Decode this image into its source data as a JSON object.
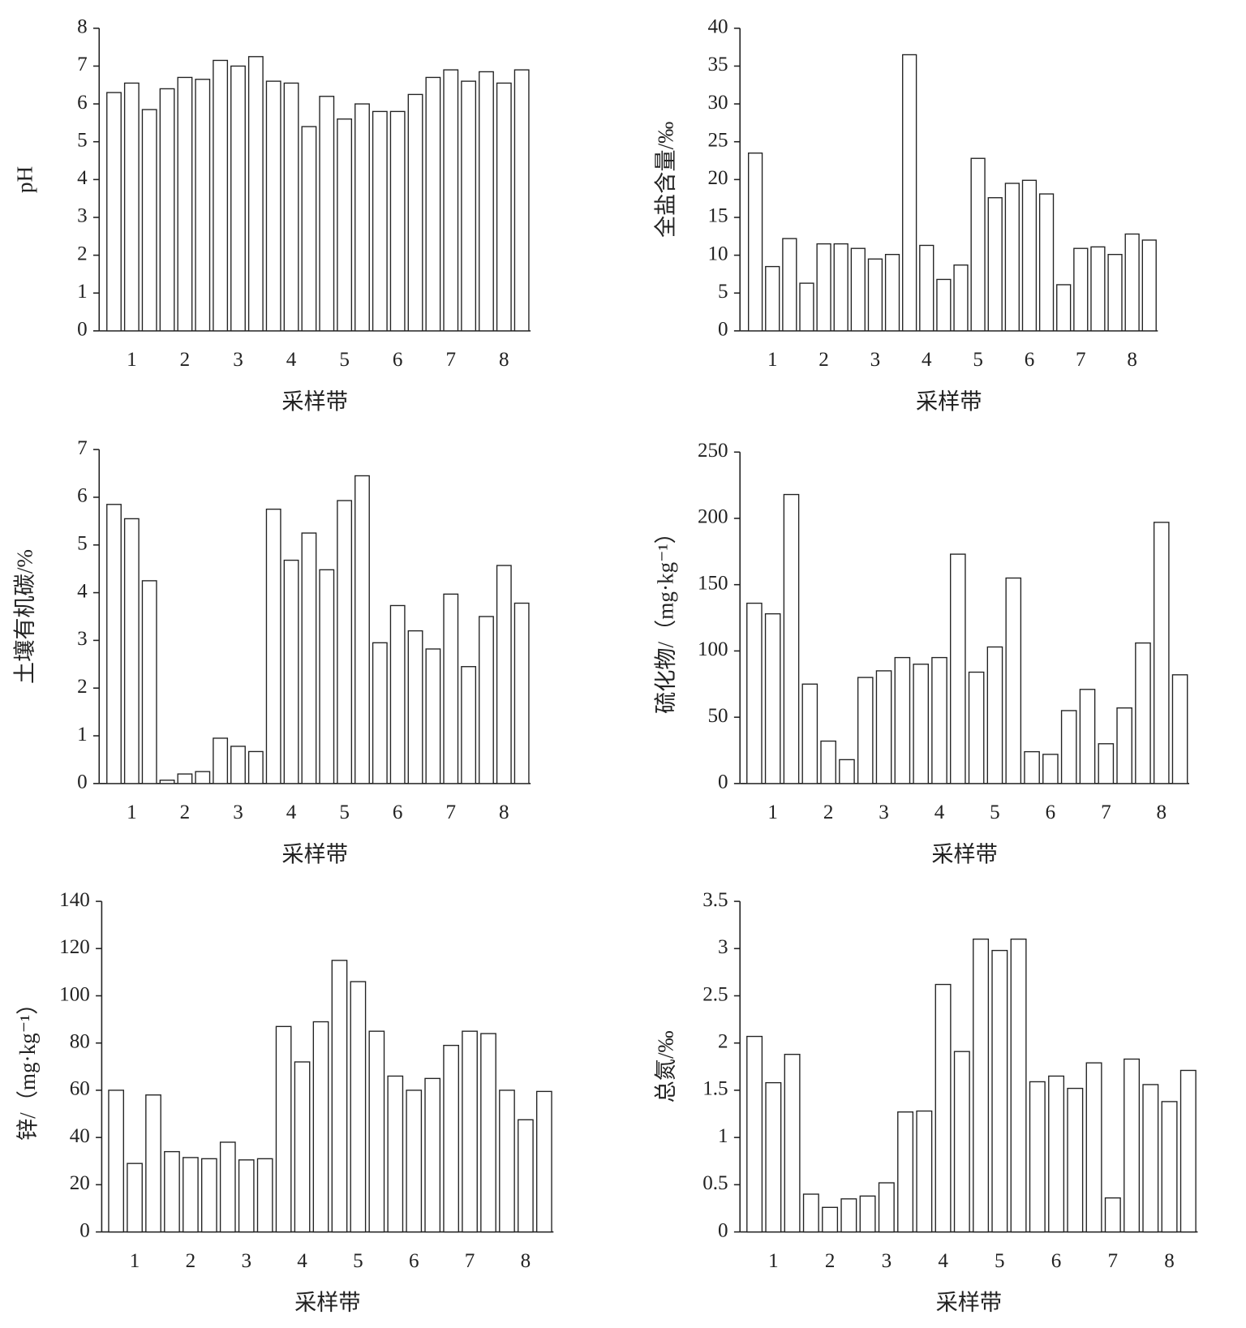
{
  "chart_data": [
    {
      "type": "bar",
      "ylabel": "pH",
      "xlabel": "采样带",
      "color": "#ffffff",
      "categories": [
        null,
        "1",
        null,
        null,
        "2",
        null,
        null,
        "3",
        null,
        null,
        "4",
        null,
        null,
        "5",
        null,
        null,
        "6",
        null,
        null,
        "7",
        null,
        null,
        "8",
        null
      ],
      "values": [
        6.3,
        6.55,
        5.85,
        6.4,
        6.7,
        6.65,
        7.15,
        7.0,
        7.25,
        6.6,
        6.55,
        5.4,
        6.2,
        5.6,
        6.0,
        5.8,
        5.8,
        6.25,
        6.7,
        6.9,
        6.6,
        6.85,
        6.55,
        6.9
      ],
      "ylim": [
        0,
        8
      ],
      "yticks": [
        0,
        1,
        2,
        3,
        4,
        5,
        6,
        7,
        8
      ]
    },
    {
      "type": "bar",
      "ylabel": "全盐含量/‰",
      "xlabel": "采样带",
      "color": "#ffffff",
      "categories": [
        null,
        "1",
        null,
        null,
        "2",
        null,
        null,
        "3",
        null,
        null,
        "4",
        null,
        null,
        "5",
        null,
        null,
        "6",
        null,
        null,
        "7",
        null,
        null,
        "8",
        null
      ],
      "values": [
        23.5,
        8.5,
        12.2,
        6.3,
        11.5,
        11.5,
        10.9,
        9.5,
        10.1,
        36.5,
        11.3,
        6.8,
        8.7,
        22.8,
        17.6,
        19.5,
        19.9,
        18.1,
        6.1,
        10.9,
        11.1,
        10.1,
        12.8,
        12.0
      ],
      "ylim": [
        0,
        40
      ],
      "yticks": [
        0,
        5,
        10,
        15,
        20,
        25,
        30,
        35,
        40
      ]
    },
    {
      "type": "bar",
      "ylabel": "土壤有机碳/%",
      "xlabel": "采样带",
      "color": "#ffffff",
      "categories": [
        null,
        "1",
        null,
        null,
        "2",
        null,
        null,
        "3",
        null,
        null,
        "4",
        null,
        null,
        "5",
        null,
        null,
        "6",
        null,
        null,
        "7",
        null,
        null,
        "8",
        null
      ],
      "values": [
        5.85,
        5.55,
        4.25,
        0.07,
        0.2,
        0.25,
        0.95,
        0.78,
        0.67,
        5.75,
        4.68,
        5.25,
        4.48,
        5.93,
        6.45,
        2.95,
        3.73,
        3.2,
        2.82,
        3.97,
        2.45,
        3.5,
        4.57,
        3.78
      ],
      "ylim": [
        0,
        7
      ],
      "yticks": [
        0,
        1,
        2,
        3,
        4,
        5,
        6,
        7
      ]
    },
    {
      "type": "bar",
      "ylabel": "硫化物/（mg·kg⁻¹）",
      "xlabel": "采样带",
      "color": "#ffffff",
      "categories": [
        null,
        "1",
        null,
        null,
        "2",
        null,
        null,
        "3",
        null,
        null,
        "4",
        null,
        null,
        "5",
        null,
        null,
        "6",
        null,
        null,
        "7",
        null,
        null,
        "8",
        null
      ],
      "values": [
        136,
        128,
        218,
        75,
        32,
        18,
        80,
        85,
        95,
        90,
        95,
        173,
        84,
        103,
        155,
        24,
        22,
        55,
        71,
        30,
        57,
        106,
        197,
        82
      ],
      "ylim": [
        0,
        250
      ],
      "yticks": [
        0,
        50,
        100,
        150,
        200,
        250
      ]
    },
    {
      "type": "bar",
      "ylabel": "锌/（mg·kg⁻¹）",
      "xlabel": "采样带",
      "color": "#ffffff",
      "categories": [
        null,
        "1",
        null,
        null,
        "2",
        null,
        null,
        "3",
        null,
        null,
        "4",
        null,
        null,
        "5",
        null,
        null,
        "6",
        null,
        null,
        "7",
        null,
        null,
        "8",
        null
      ],
      "values": [
        60,
        29,
        58,
        34,
        31.5,
        31,
        38,
        30.5,
        31,
        87,
        72,
        89,
        115,
        106,
        85,
        66,
        60,
        65,
        79,
        85,
        84,
        60,
        47.5,
        59.5
      ],
      "ylim": [
        0,
        140
      ],
      "yticks": [
        0,
        20,
        40,
        60,
        80,
        100,
        120,
        140
      ]
    },
    {
      "type": "bar",
      "ylabel": "总氮/‰",
      "xlabel": "采样带",
      "color": "#ffffff",
      "categories": [
        null,
        "1",
        null,
        null,
        "2",
        null,
        null,
        "3",
        null,
        null,
        "4",
        null,
        null,
        "5",
        null,
        null,
        "6",
        null,
        null,
        "7",
        null,
        null,
        "8",
        null
      ],
      "values": [
        2.07,
        1.58,
        1.88,
        0.4,
        0.26,
        0.35,
        0.38,
        0.52,
        1.27,
        1.28,
        2.62,
        1.91,
        3.1,
        2.98,
        3.1,
        1.59,
        1.65,
        1.52,
        1.79,
        0.36,
        1.83,
        1.56,
        1.38,
        1.71
      ],
      "ylim": [
        0,
        3.5
      ],
      "yticks": [
        0,
        0.5,
        1,
        1.5,
        2,
        2.5,
        3,
        3.5
      ]
    }
  ]
}
